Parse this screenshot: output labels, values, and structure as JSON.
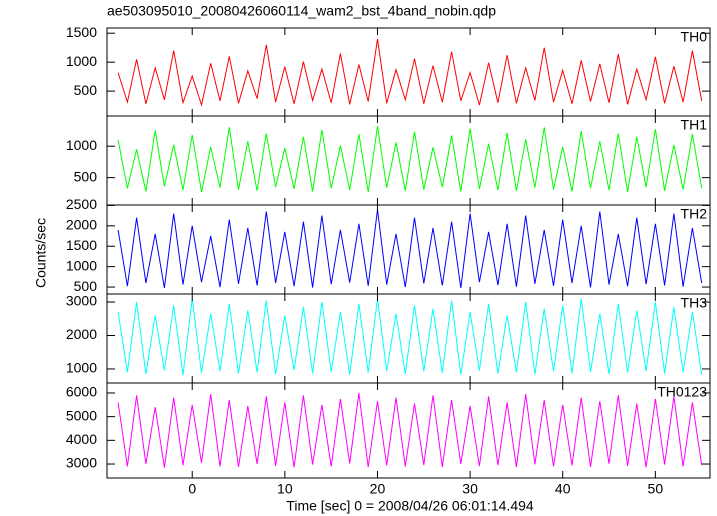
{
  "figure": {
    "title": "ae503095010_20080426060114_wam2_bst_4band_nobin.qdp",
    "ylabel": "Counts/sec",
    "xlabel": "Time [sec] 0 = 2008/04/26 06:01:14.494"
  },
  "chart_data": [
    {
      "type": "line",
      "label": "TH0",
      "color": "#ff0000",
      "xlim": [
        -9.2,
        55.9
      ],
      "xticks": [
        0,
        10,
        20,
        30,
        40,
        50
      ],
      "ylim": [
        70,
        1590
      ],
      "yticks": [
        500,
        1000,
        1500
      ],
      "x": [
        -8,
        -7,
        -6,
        -5,
        -4,
        -3,
        -2,
        -1,
        0,
        1,
        2,
        3,
        4,
        5,
        6,
        7,
        8,
        9,
        10,
        11,
        12,
        13,
        14,
        15,
        16,
        17,
        18,
        19,
        20,
        21,
        22,
        23,
        24,
        25,
        26,
        27,
        28,
        29,
        30,
        31,
        32,
        33,
        34,
        35,
        36,
        37,
        38,
        39,
        40,
        41,
        42,
        43,
        44,
        45,
        46,
        47,
        48,
        49,
        50,
        51,
        52,
        53,
        54,
        55
      ],
      "values": [
        820,
        310,
        1050,
        280,
        900,
        350,
        1200,
        300,
        760,
        260,
        980,
        330,
        1100,
        290,
        850,
        370,
        1300,
        310,
        920,
        280,
        1010,
        340,
        880,
        300,
        1150,
        270,
        960,
        320,
        1400,
        290,
        870,
        350,
        1060,
        280,
        940,
        310,
        1180,
        330,
        820,
        260,
        990,
        300,
        1120,
        290,
        900,
        340,
        1250,
        310,
        860,
        280,
        1030,
        320,
        970,
        300,
        1140,
        270,
        880,
        350,
        1090,
        290,
        930,
        310,
        1200,
        330
      ]
    },
    {
      "type": "line",
      "label": "TH1",
      "color": "#00ff00",
      "xlim": [
        -9.2,
        55.9
      ],
      "xticks": [
        0,
        10,
        20,
        30,
        40,
        50
      ],
      "ylim": [
        65,
        1480
      ],
      "yticks": [
        500,
        1000
      ],
      "x": [
        -8,
        -7,
        -6,
        -5,
        -4,
        -3,
        -2,
        -1,
        0,
        1,
        2,
        3,
        4,
        5,
        6,
        7,
        8,
        9,
        10,
        11,
        12,
        13,
        14,
        15,
        16,
        17,
        18,
        19,
        20,
        21,
        22,
        23,
        24,
        25,
        26,
        27,
        28,
        29,
        30,
        31,
        32,
        33,
        34,
        35,
        36,
        37,
        38,
        39,
        40,
        41,
        42,
        43,
        44,
        45,
        46,
        47,
        48,
        49,
        50,
        51,
        52,
        53,
        54,
        55
      ],
      "values": [
        1100,
        330,
        950,
        280,
        1250,
        360,
        1020,
        300,
        1180,
        270,
        990,
        340,
        1300,
        310,
        1080,
        290,
        1200,
        350,
        970,
        320,
        1150,
        280,
        1260,
        330,
        1010,
        300,
        1190,
        270,
        1320,
        340,
        1060,
        290,
        1230,
        310,
        980,
        350,
        1170,
        280,
        1280,
        320,
        1040,
        300,
        1210,
        290,
        1110,
        340,
        1300,
        310,
        990,
        280,
        1240,
        330,
        1080,
        300,
        1200,
        270,
        1150,
        350,
        1270,
        290,
        1020,
        310,
        1190,
        330
      ]
    },
    {
      "type": "line",
      "label": "TH2",
      "color": "#0000ff",
      "xlim": [
        -9.2,
        55.9
      ],
      "xticks": [
        0,
        10,
        20,
        30,
        40,
        50
      ],
      "ylim": [
        330,
        2510
      ],
      "yticks": [
        500,
        1000,
        1500,
        2000,
        2500
      ],
      "x": [
        -8,
        -7,
        -6,
        -5,
        -4,
        -3,
        -2,
        -1,
        0,
        1,
        2,
        3,
        4,
        5,
        6,
        7,
        8,
        9,
        10,
        11,
        12,
        13,
        14,
        15,
        16,
        17,
        18,
        19,
        20,
        21,
        22,
        23,
        24,
        25,
        26,
        27,
        28,
        29,
        30,
        31,
        32,
        33,
        34,
        35,
        36,
        37,
        38,
        39,
        40,
        41,
        42,
        43,
        44,
        45,
        46,
        47,
        48,
        49,
        50,
        51,
        52,
        53,
        54,
        55
      ],
      "values": [
        1900,
        520,
        2200,
        600,
        1800,
        480,
        2300,
        560,
        2000,
        620,
        1750,
        500,
        2150,
        580,
        1950,
        540,
        2350,
        600,
        1850,
        520,
        2100,
        490,
        2250,
        570,
        1900,
        610,
        2050,
        530,
        2400,
        560,
        1800,
        500,
        2200,
        590,
        1950,
        540,
        2100,
        480,
        2300,
        620,
        1850,
        550,
        2050,
        510,
        2250,
        580,
        1900,
        530,
        2150,
        600,
        2000,
        490,
        2350,
        560,
        1800,
        520,
        2200,
        570,
        2050,
        540,
        2300,
        510,
        1950,
        600
      ]
    },
    {
      "type": "line",
      "label": "TH3",
      "color": "#00ffff",
      "xlim": [
        -9.2,
        55.9
      ],
      "xticks": [
        0,
        10,
        20,
        30,
        40,
        50
      ],
      "ylim": [
        580,
        3240
      ],
      "yticks": [
        1000,
        2000,
        3000
      ],
      "x": [
        -8,
        -7,
        -6,
        -5,
        -4,
        -3,
        -2,
        -1,
        0,
        1,
        2,
        3,
        4,
        5,
        6,
        7,
        8,
        9,
        10,
        11,
        12,
        13,
        14,
        15,
        16,
        17,
        18,
        19,
        20,
        21,
        22,
        23,
        24,
        25,
        26,
        27,
        28,
        29,
        30,
        31,
        32,
        33,
        34,
        35,
        36,
        37,
        38,
        39,
        40,
        41,
        42,
        43,
        44,
        45,
        46,
        47,
        48,
        49,
        50,
        51,
        52,
        53,
        54,
        55
      ],
      "values": [
        2700,
        900,
        3000,
        850,
        2600,
        950,
        2900,
        820,
        3100,
        880,
        2650,
        930,
        2950,
        860,
        2750,
        900,
        3050,
        840,
        2600,
        960,
        2850,
        870,
        3000,
        910,
        2700,
        830,
        2950,
        890,
        3100,
        940,
        2650,
        850,
        2900,
        920,
        2800,
        880,
        3050,
        830,
        2700,
        950,
        2950,
        860,
        2600,
        900,
        3000,
        840,
        2800,
        930,
        2900,
        870,
        3100,
        910,
        2650,
        850,
        2950,
        890,
        2750,
        940,
        3000,
        860,
        2850,
        900,
        2700,
        830
      ]
    },
    {
      "type": "line",
      "label": "TH0123",
      "color": "#ff00ff",
      "xlim": [
        -9.2,
        55.9
      ],
      "xticks": [
        0,
        10,
        20,
        30,
        40,
        50
      ],
      "ylim": [
        2410,
        6420
      ],
      "yticks": [
        3000,
        4000,
        5000,
        6000
      ],
      "x": [
        -8,
        -7,
        -6,
        -5,
        -4,
        -3,
        -2,
        -1,
        0,
        1,
        2,
        3,
        4,
        5,
        6,
        7,
        8,
        9,
        10,
        11,
        12,
        13,
        14,
        15,
        16,
        17,
        18,
        19,
        20,
        21,
        22,
        23,
        24,
        25,
        26,
        27,
        28,
        29,
        30,
        31,
        32,
        33,
        34,
        35,
        36,
        37,
        38,
        39,
        40,
        41,
        42,
        43,
        44,
        45,
        46,
        47,
        48,
        49,
        50,
        51,
        52,
        53,
        54,
        55
      ],
      "values": [
        5600,
        2900,
        5900,
        3000,
        5400,
        2850,
        5800,
        2950,
        5500,
        3050,
        5950,
        2900,
        5700,
        2880,
        5450,
        3000,
        5850,
        2920,
        5600,
        2860,
        5900,
        2980,
        5500,
        2900,
        5750,
        3020,
        6000,
        2870,
        5650,
        2940,
        5800,
        2900,
        5550,
        2960,
        5900,
        2880,
        5700,
        3000,
        5450,
        2910,
        5850,
        2950,
        5600,
        2870,
        5950,
        2990,
        5700,
        2900,
        5500,
        2940,
        5800,
        2880,
        5650,
        3010,
        5900,
        2920,
        5550,
        2860,
        5750,
        2980,
        5850,
        2900,
        5600,
        2950
      ]
    }
  ]
}
